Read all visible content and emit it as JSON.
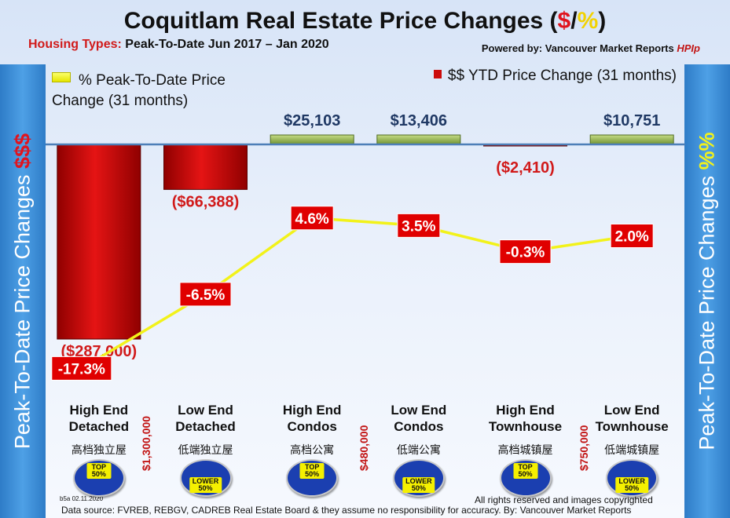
{
  "title_main": "Coquitlam Real Estate Price Changes (",
  "title_dollar": "$",
  "title_slash": "/",
  "title_pct": "%",
  "title_close": ")",
  "subtitle_label": "Housing Types:",
  "subtitle_text": "Peak-To-Date Jun 2017 – Jan 2020",
  "powered_label": "Powered by: Vancouver Market Reports",
  "powered_brand": "HPIp",
  "legend_left_line1": "% Peak-To-Date Price",
  "legend_left_line2": "Change (31 months)",
  "legend_right": "$$ YTD Price Change (31 months)",
  "side_left_text": "Peak-To-Date Price Changes ",
  "side_left_symbol": "$$$",
  "side_right_text": "Peak-To-Date  Price  Changes  ",
  "side_right_symbol": "%%",
  "chart_data": {
    "type": "bar",
    "categories": [
      "High End Detached",
      "Low End Detached",
      "High End Condos",
      "Low End Condos",
      "High End Townhouse",
      "Low End Townhouse"
    ],
    "series": [
      {
        "name": "$$ YTD Price Change (31 months)",
        "type": "bar",
        "values": [
          -287000,
          -66388,
          25103,
          13406,
          -2410,
          10751
        ]
      },
      {
        "name": "% Peak-To-Date Price Change (31 months)",
        "type": "line",
        "values": [
          -17.3,
          -6.5,
          4.6,
          3.5,
          -0.3,
          2.0
        ]
      }
    ],
    "dollar_labels": [
      "($287,000)",
      "($66,388)",
      "$25,103",
      "$13,406",
      "($2,410)",
      "$10,751"
    ],
    "pct_labels": [
      "-17.3%",
      "-6.5%",
      "4.6%",
      "3.5%",
      "-0.3%",
      "2.0%"
    ],
    "legend": "top"
  },
  "categories_zh": [
    "高档独立屋",
    "低端独立屋",
    "高档公寓",
    "低端公寓",
    "高档城镇屋",
    "低端城镇屋"
  ],
  "category_lines": [
    [
      "High End",
      "Detached"
    ],
    [
      "Low End",
      "Detached"
    ],
    [
      "High End",
      "Condos"
    ],
    [
      "Low End",
      "Condos"
    ],
    [
      "High End",
      "Townhouse"
    ],
    [
      "Low End",
      "Townhouse"
    ]
  ],
  "badges": [
    "TOP 50%",
    "LOWER 50%",
    "TOP 50%",
    "LOWER 50%",
    "TOP 50%",
    "LOWER 50%"
  ],
  "thresholds": [
    "$1,300,000",
    "$480,000",
    "$750,000"
  ],
  "stamp": "b5a 02.11.2020",
  "rights": "All rights reserved and  images copyrighted",
  "footer": "Data source: FVREB, REBGV, CADREB Real Estate Board & they assume no responsibility for accuracy. By: Vancouver Market Reports",
  "colors": {
    "bar_negative": "#cc0b0b",
    "bar_positive": "#8fb04a",
    "line": "#f2f21a",
    "label_bg": "#e00000",
    "dollar_pos": "#1f3864",
    "dollar_neg": "#d11a1a"
  }
}
